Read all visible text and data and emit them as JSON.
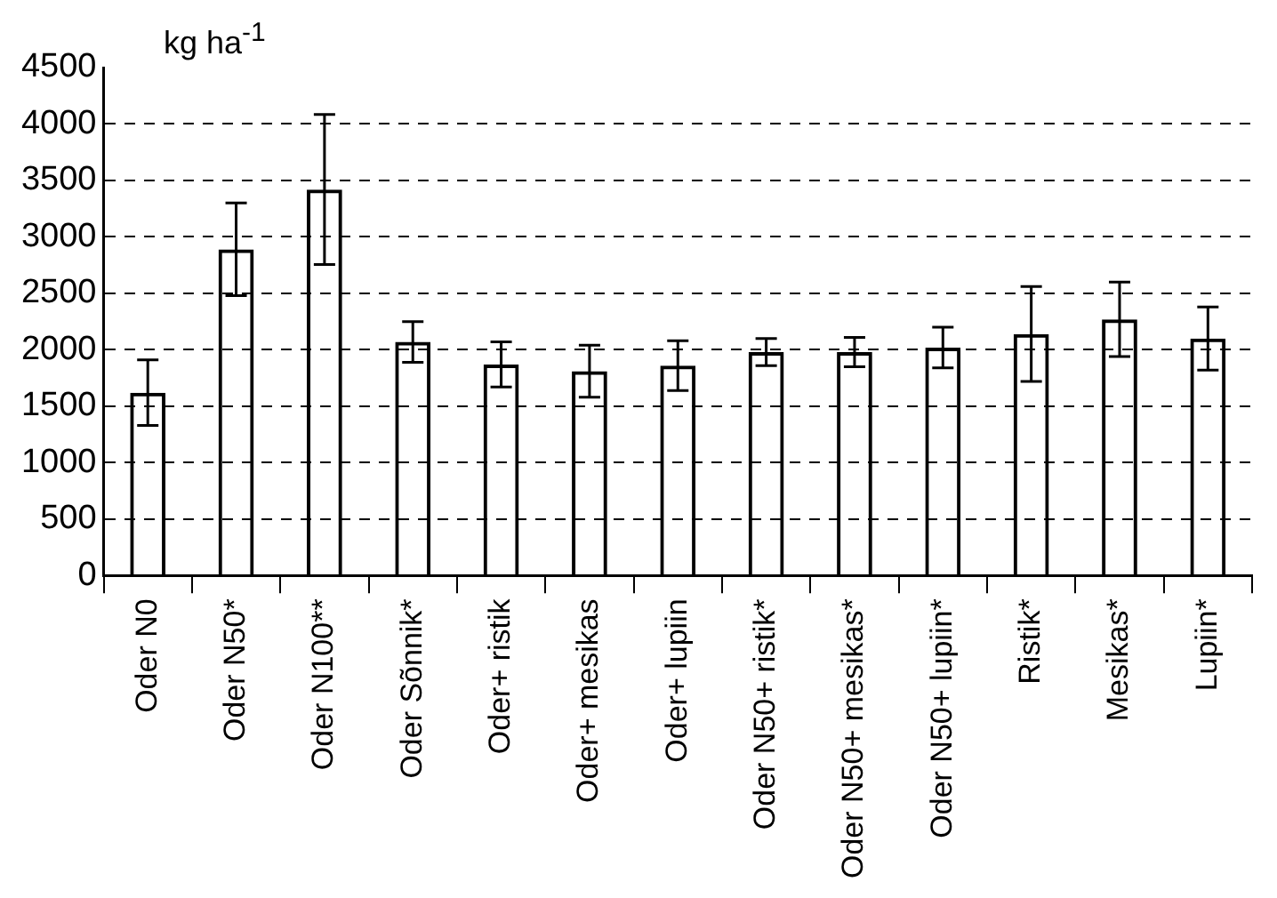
{
  "chart_data": {
    "type": "bar",
    "ylabel": "kg ha$^{-1}$",
    "categories": [
      "Oder N0",
      "Oder N50*",
      "Oder N100**",
      "Oder Sõnnik*",
      "Oder+ ristik",
      "Oder+ mesikas",
      "Oder+ lupiin",
      "Oder N50+ ristik*",
      "Oder N50+ mesikas*",
      "Oder N50+ lupiin*",
      "Ristik*",
      "Mesikas*",
      "Lupiin*"
    ],
    "values": [
      1620,
      2890,
      3420,
      2070,
      1870,
      1810,
      1860,
      1980,
      1980,
      2020,
      2140,
      2270,
      2100
    ],
    "errors": [
      290,
      410,
      665,
      180,
      200,
      230,
      220,
      120,
      130,
      180,
      420,
      330,
      280
    ],
    "color": "#000000",
    "ylim": [
      0,
      4500
    ],
    "yticks": [
      0,
      500,
      1000,
      1500,
      2000,
      2500,
      3000,
      3500,
      4000,
      4500
    ],
    "grid": "y"
  }
}
